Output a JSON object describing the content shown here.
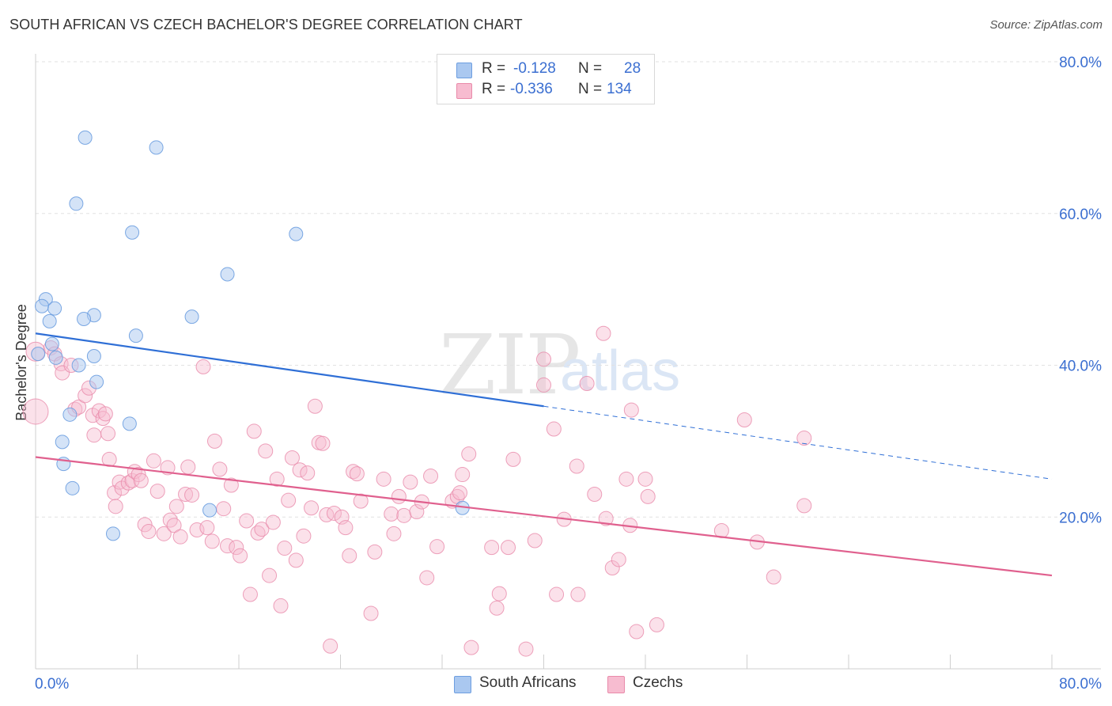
{
  "title": "SOUTH AFRICAN VS CZECH BACHELOR'S DEGREE CORRELATION CHART",
  "source": "Source: ZipAtlas.com",
  "watermark": {
    "zip": "ZIP",
    "atlas": "atlas"
  },
  "legend": {
    "rows": [
      {
        "r_label": "R =",
        "r_value": "-0.128",
        "n_label": "N =",
        "n_value": "28",
        "color": "#aac8f0",
        "border": "#6d9ee0"
      },
      {
        "r_label": "R =",
        "r_value": "-0.336",
        "n_label": "N =",
        "n_value": "134",
        "color": "#f7bcd0",
        "border": "#e98aaa"
      }
    ]
  },
  "bottom_legend": [
    {
      "label": "South Africans",
      "color": "#aac8f0",
      "border": "#6d9ee0"
    },
    {
      "label": "Czechs",
      "color": "#f7bcd0",
      "border": "#e98aaa"
    }
  ],
  "chart_data": {
    "type": "scatter",
    "title": "SOUTH AFRICAN VS CZECH BACHELOR'S DEGREE CORRELATION CHART",
    "xlabel": "",
    "ylabel": "Bachelor's Degree",
    "xlim": [
      0,
      80
    ],
    "ylim": [
      0,
      80
    ],
    "x_tick_labels": [
      "0.0%",
      "80.0%"
    ],
    "y_tick_labels": [
      "20.0%",
      "40.0%",
      "60.0%",
      "80.0%"
    ],
    "y_ticks": [
      20,
      40,
      60,
      80
    ],
    "x_minor_ticks": [
      8,
      16,
      24,
      32,
      40,
      48,
      56,
      64,
      72,
      80
    ],
    "colors": {
      "south_africans": "#6d9ee0",
      "czechs": "#e98aaa",
      "sa_line": "#2f6fd6",
      "cz_line": "#e0608e",
      "axis_label": "#3b6fd1",
      "grid": "#e2e2e2"
    },
    "series": [
      {
        "name": "South Africans",
        "r": -0.128,
        "n": 28,
        "trend": {
          "x0": 0,
          "y0": 44.2,
          "x1": 40,
          "y1": 34.6,
          "dash_x1": 80,
          "dash_y1": 25.0
        },
        "points": [
          [
            3.9,
            70.0
          ],
          [
            9.5,
            68.7
          ],
          [
            3.2,
            61.3
          ],
          [
            7.6,
            57.5
          ],
          [
            20.5,
            57.3
          ],
          [
            15.1,
            52.0
          ],
          [
            0.8,
            48.7
          ],
          [
            0.5,
            47.8
          ],
          [
            1.5,
            47.5
          ],
          [
            4.6,
            46.6
          ],
          [
            12.3,
            46.4
          ],
          [
            3.8,
            46.1
          ],
          [
            1.1,
            45.8
          ],
          [
            7.9,
            43.9
          ],
          [
            1.3,
            42.8
          ],
          [
            4.6,
            41.2
          ],
          [
            1.6,
            41.0
          ],
          [
            0.2,
            41.5
          ],
          [
            3.4,
            40.0
          ],
          [
            4.8,
            37.8
          ],
          [
            2.7,
            33.5
          ],
          [
            7.4,
            32.3
          ],
          [
            2.1,
            29.9
          ],
          [
            2.2,
            27.0
          ],
          [
            2.9,
            23.8
          ],
          [
            13.7,
            20.9
          ],
          [
            33.6,
            21.2
          ],
          [
            6.1,
            17.8
          ]
        ]
      },
      {
        "name": "Czechs",
        "r": -0.336,
        "n": 134,
        "trend": {
          "x0": 0,
          "y0": 27.9,
          "x1": 80,
          "y1": 12.3
        },
        "points": [
          [
            0.0,
            41.8
          ],
          [
            0.0,
            33.9
          ],
          [
            1.2,
            42.3
          ],
          [
            1.5,
            41.5
          ],
          [
            2.0,
            40.2
          ],
          [
            2.1,
            39.0
          ],
          [
            2.8,
            40.0
          ],
          [
            3.1,
            34.2
          ],
          [
            3.4,
            34.5
          ],
          [
            3.9,
            36.0
          ],
          [
            4.2,
            37.0
          ],
          [
            4.6,
            30.8
          ],
          [
            4.5,
            33.4
          ],
          [
            5.0,
            34.0
          ],
          [
            5.3,
            33.0
          ],
          [
            5.5,
            33.6
          ],
          [
            5.7,
            31.0
          ],
          [
            5.8,
            27.6
          ],
          [
            6.2,
            23.2
          ],
          [
            6.3,
            21.4
          ],
          [
            6.6,
            24.6
          ],
          [
            6.8,
            23.8
          ],
          [
            7.3,
            24.5
          ],
          [
            7.6,
            24.8
          ],
          [
            7.8,
            26.0
          ],
          [
            8.1,
            25.6
          ],
          [
            8.3,
            24.8
          ],
          [
            8.6,
            19.0
          ],
          [
            8.9,
            18.1
          ],
          [
            9.3,
            27.4
          ],
          [
            9.6,
            23.4
          ],
          [
            10.1,
            17.8
          ],
          [
            10.4,
            26.5
          ],
          [
            10.6,
            19.6
          ],
          [
            10.9,
            18.9
          ],
          [
            11.1,
            21.4
          ],
          [
            11.4,
            17.4
          ],
          [
            11.8,
            23.0
          ],
          [
            12.0,
            26.6
          ],
          [
            12.3,
            22.9
          ],
          [
            12.7,
            18.3
          ],
          [
            13.2,
            39.8
          ],
          [
            13.5,
            18.6
          ],
          [
            13.9,
            16.8
          ],
          [
            14.1,
            30.0
          ],
          [
            14.5,
            26.3
          ],
          [
            14.8,
            21.1
          ],
          [
            15.1,
            16.2
          ],
          [
            15.4,
            24.2
          ],
          [
            15.8,
            16.0
          ],
          [
            16.1,
            14.9
          ],
          [
            16.6,
            19.5
          ],
          [
            16.9,
            9.8
          ],
          [
            17.2,
            31.3
          ],
          [
            17.5,
            17.9
          ],
          [
            17.8,
            18.4
          ],
          [
            18.1,
            28.7
          ],
          [
            18.4,
            12.3
          ],
          [
            18.7,
            19.3
          ],
          [
            19.0,
            25.0
          ],
          [
            19.3,
            8.3
          ],
          [
            19.6,
            15.9
          ],
          [
            19.9,
            22.2
          ],
          [
            20.2,
            27.8
          ],
          [
            20.5,
            14.3
          ],
          [
            20.8,
            26.2
          ],
          [
            21.1,
            17.5
          ],
          [
            21.4,
            25.8
          ],
          [
            21.7,
            21.2
          ],
          [
            22.0,
            34.6
          ],
          [
            22.3,
            29.8
          ],
          [
            22.6,
            29.7
          ],
          [
            22.9,
            20.3
          ],
          [
            23.2,
            3.0
          ],
          [
            23.5,
            20.5
          ],
          [
            24.1,
            20.0
          ],
          [
            24.4,
            18.6
          ],
          [
            24.7,
            14.9
          ],
          [
            25.0,
            26.0
          ],
          [
            25.3,
            25.7
          ],
          [
            25.6,
            22.1
          ],
          [
            26.4,
            7.3
          ],
          [
            26.7,
            15.4
          ],
          [
            27.4,
            25.0
          ],
          [
            28.0,
            20.4
          ],
          [
            28.2,
            17.8
          ],
          [
            28.6,
            22.7
          ],
          [
            29.0,
            20.2
          ],
          [
            29.5,
            24.6
          ],
          [
            30.0,
            20.7
          ],
          [
            30.4,
            22.0
          ],
          [
            30.8,
            12.0
          ],
          [
            31.1,
            25.4
          ],
          [
            31.6,
            16.1
          ],
          [
            32.8,
            22.1
          ],
          [
            33.2,
            22.7
          ],
          [
            33.4,
            23.2
          ],
          [
            33.6,
            25.6
          ],
          [
            34.1,
            28.3
          ],
          [
            34.3,
            2.8
          ],
          [
            35.9,
            16.0
          ],
          [
            36.3,
            8.0
          ],
          [
            36.5,
            9.9
          ],
          [
            37.2,
            16.0
          ],
          [
            37.6,
            27.6
          ],
          [
            38.6,
            2.6
          ],
          [
            39.3,
            16.9
          ],
          [
            40.0,
            40.8
          ],
          [
            40.0,
            37.4
          ],
          [
            40.8,
            31.6
          ],
          [
            41.0,
            9.8
          ],
          [
            41.6,
            19.7
          ],
          [
            42.6,
            26.7
          ],
          [
            43.4,
            37.6
          ],
          [
            44.0,
            23.0
          ],
          [
            44.7,
            44.2
          ],
          [
            45.4,
            13.3
          ],
          [
            45.9,
            14.4
          ],
          [
            46.5,
            25.0
          ],
          [
            46.9,
            34.1
          ],
          [
            47.3,
            4.9
          ],
          [
            48.0,
            25.0
          ],
          [
            48.2,
            22.7
          ],
          [
            48.9,
            5.8
          ],
          [
            54.0,
            18.2
          ],
          [
            55.8,
            32.8
          ],
          [
            56.8,
            16.7
          ],
          [
            58.1,
            12.1
          ],
          [
            60.5,
            30.4
          ],
          [
            60.5,
            21.5
          ],
          [
            46.8,
            18.9
          ],
          [
            44.9,
            19.8
          ],
          [
            42.7,
            9.8
          ]
        ]
      }
    ]
  }
}
